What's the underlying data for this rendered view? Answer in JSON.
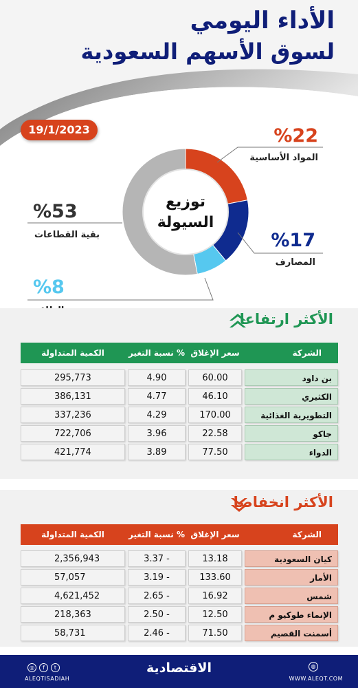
{
  "header": {
    "title_line1": "الأداء اليومي",
    "title_line2": "لسوق الأسهم السعودية",
    "date": "19/1/2023"
  },
  "chart_data": {
    "type": "pie",
    "title": "توزيع السيولة",
    "title_line1": "توزيع",
    "title_line2": "السيولة",
    "slices": [
      {
        "label": "المواد الأساسية",
        "value": 22,
        "pct_text": "%22",
        "color": "#d7431d"
      },
      {
        "label": "المصارف",
        "value": 17,
        "pct_text": "%17",
        "color": "#0f2b8f"
      },
      {
        "label": "الطاقة",
        "value": 8,
        "pct_text": "%8",
        "color": "#56c8ef"
      },
      {
        "label": "بقية القطاعات",
        "value": 53,
        "pct_text": "%53",
        "color": "#b5b5b5"
      }
    ]
  },
  "gainers": {
    "title": "الأكثر ارتفاعا",
    "color": "#1f9654",
    "headers": {
      "name": "الشركة",
      "close": "سعر الإغلاق",
      "change": "نسبة التغير %",
      "qty": "الكمية المتداولة"
    },
    "rows": [
      {
        "name": "بن داود",
        "close": "60.00",
        "change": "4.90",
        "qty": "295,773"
      },
      {
        "name": "الكثيري",
        "close": "46.10",
        "change": "4.77",
        "qty": "386,131"
      },
      {
        "name": "التطويرية الغذائية",
        "close": "170.00",
        "change": "4.29",
        "qty": "337,236"
      },
      {
        "name": "جاكو",
        "close": "22.58",
        "change": "3.96",
        "qty": "722,706"
      },
      {
        "name": "الدواء",
        "close": "77.50",
        "change": "3.89",
        "qty": "421,774"
      }
    ]
  },
  "losers": {
    "title": "الأكثر انخفاضا",
    "color": "#d7431d",
    "headers": {
      "name": "الشركة",
      "close": "سعر الإغلاق",
      "change": "نسبة التغير %",
      "qty": "الكمية المتداولة"
    },
    "rows": [
      {
        "name": "كيان السعودية",
        "close": "13.18",
        "change": "3.37 -",
        "qty": "2,356,943"
      },
      {
        "name": "الأمار",
        "close": "133.60",
        "change": "3.19 -",
        "qty": "57,057"
      },
      {
        "name": "شمس",
        "close": "16.92",
        "change": "2.65 -",
        "qty": "4,621,452"
      },
      {
        "name": "الإنماء طوكيو م",
        "close": "12.50",
        "change": "2.50 -",
        "qty": "218,363"
      },
      {
        "name": "أسمنت القصيم",
        "close": "71.50",
        "change": "2.46 -",
        "qty": "58,731"
      }
    ]
  },
  "footer": {
    "brand": "الاقتصادية",
    "handle": "ALEQTISADIAH",
    "website": "WWW.ALEQT.COM"
  },
  "icons": {
    "up": "double-chevron-up-icon",
    "down": "double-chevron-down-icon",
    "social": [
      "twitter-icon",
      "facebook-icon",
      "instagram-icon"
    ],
    "globe": "globe-icon"
  }
}
